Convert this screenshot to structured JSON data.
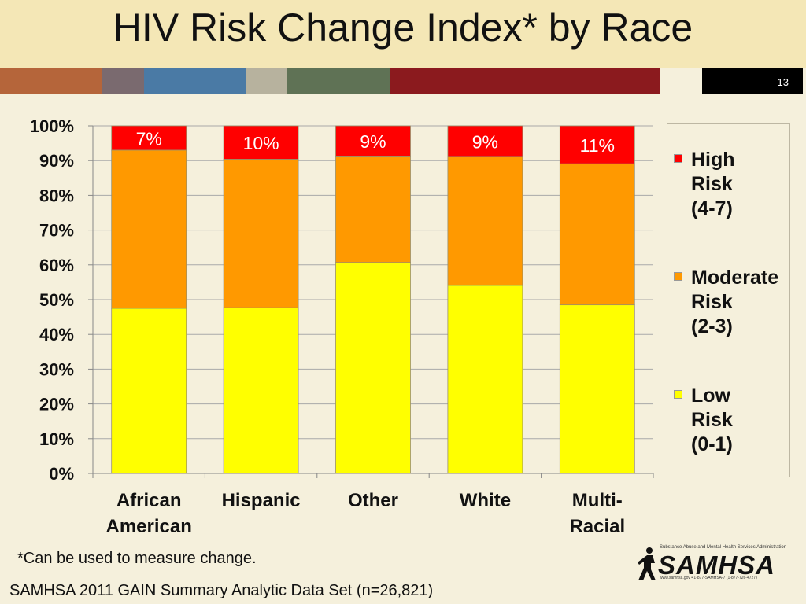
{
  "slide": {
    "title": "HIV Risk Change Index* by Race",
    "slide_number": "13",
    "footnote": "*Can be used to measure change.",
    "source": "SAMHSA 2011 GAIN Summary Analytic Data Set (n=26,821)",
    "logo": {
      "name": "SAMHSA",
      "tagline": "Substance Abuse and Mental Health Services Administration",
      "contact": "www.samhsa.gov • 1-877-SAMHSA-7 (1-877-726-4727)"
    },
    "stripe_colors": [
      "#b5653a",
      "#7a6a6f",
      "#4a7aa5",
      "#b7b29e",
      "#5f7255",
      "#8b1a1e"
    ]
  },
  "chart_data": {
    "type": "bar",
    "stacked": true,
    "categories": [
      "African\nAmerican",
      "Hispanic",
      "Other",
      "White",
      "Multi-\nRacial"
    ],
    "series": [
      {
        "name": "Low\nRisk\n(0-1)",
        "color": "#ffff00",
        "values": [
          47.5,
          47.7,
          60.7,
          54.1,
          48.5
        ]
      },
      {
        "name": "Moderate\nRisk\n(2-3)",
        "color": "#ff9900",
        "values": [
          45.5,
          42.7,
          30.6,
          37.1,
          40.6
        ]
      },
      {
        "name": "High\nRisk\n(4-7)",
        "color": "#ff0000",
        "values": [
          7,
          9.6,
          8.7,
          8.8,
          10.9
        ]
      }
    ],
    "data_labels": [
      "7%",
      "10%",
      "9%",
      "9%",
      "11%"
    ],
    "y_ticks": [
      "0%",
      "10%",
      "20%",
      "30%",
      "40%",
      "50%",
      "60%",
      "70%",
      "80%",
      "90%",
      "100%"
    ],
    "ylim": [
      0,
      100
    ],
    "legend_position": "right"
  }
}
